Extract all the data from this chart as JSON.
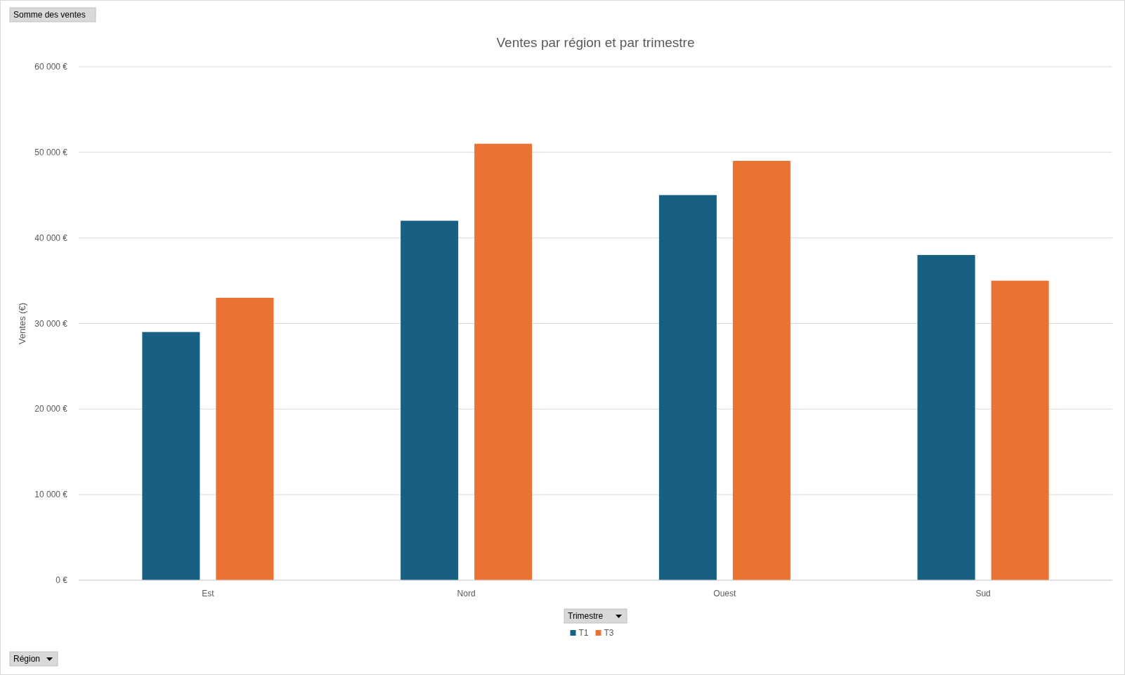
{
  "chart_data": {
    "type": "bar",
    "title": "Ventes par région et par trimestre",
    "ylabel": "Ventes (€)",
    "legend_title": "Trimestre",
    "legend": "bottom",
    "grid": "y",
    "categories": [
      "Est",
      "Nord",
      "Ouest",
      "Sud"
    ],
    "series": [
      {
        "name": "T1",
        "color": "#176083",
        "values": [
          29000,
          42000,
          45000,
          38000
        ]
      },
      {
        "name": "T3",
        "color": "#ea7232",
        "values": [
          33000,
          51000,
          49000,
          35000
        ]
      }
    ],
    "ylim": [
      0,
      60000
    ],
    "yticks": [
      {
        "value": 0,
        "label": "0 €"
      },
      {
        "value": 10000,
        "label": "10 000 €"
      },
      {
        "value": 20000,
        "label": "20 000 €"
      },
      {
        "value": 30000,
        "label": "30 000 €"
      },
      {
        "value": 40000,
        "label": "40 000 €"
      },
      {
        "value": 50000,
        "label": "50 000 €"
      },
      {
        "value": 60000,
        "label": "60 000 €"
      }
    ],
    "annotations": [
      "Somme des ventes",
      "Région"
    ]
  }
}
